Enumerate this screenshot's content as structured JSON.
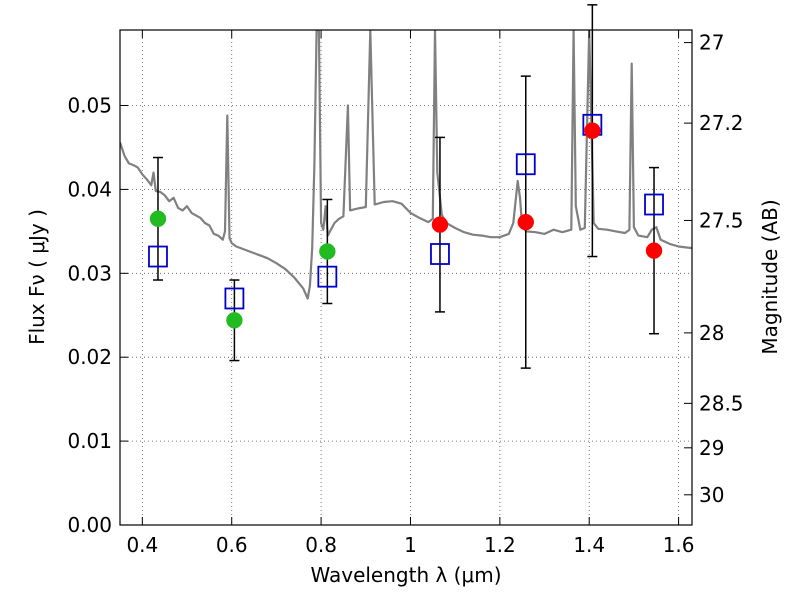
{
  "chart_data": {
    "type": "scatter",
    "xlabel": "Wavelength  λ (μm)",
    "ylabel": "Flux  Fν  ( μJy )",
    "y2label": "Magnitude (AB)",
    "xlim": [
      0.35,
      1.63
    ],
    "ylim": [
      0.0,
      0.059
    ],
    "grid": true,
    "x_ticks": [
      0.4,
      0.6,
      0.8,
      1.0,
      1.2,
      1.4,
      1.6
    ],
    "x_tick_labels": [
      "0.4",
      "0.6",
      "0.8",
      "1",
      "1.2",
      "1.4",
      "1.6"
    ],
    "y_ticks": [
      0.0,
      0.01,
      0.02,
      0.03,
      0.04,
      0.05
    ],
    "y_tick_labels": [
      "0.00",
      "0.01",
      "0.02",
      "0.03",
      "0.04",
      "0.05"
    ],
    "y2_ticks": [
      {
        "flux": 0.0575,
        "label": "27"
      },
      {
        "flux": 0.0479,
        "label": "27.2"
      },
      {
        "flux": 0.0363,
        "label": "27.5"
      },
      {
        "flux": 0.0229,
        "label": "28"
      },
      {
        "flux": 0.0145,
        "label": "28.5"
      },
      {
        "flux": 0.0092,
        "label": "29"
      },
      {
        "flux": 0.0036,
        "label": "30"
      }
    ],
    "model_spectrum": {
      "color": "#808080",
      "points": [
        [
          0.35,
          0.0456
        ],
        [
          0.36,
          0.044
        ],
        [
          0.37,
          0.0431
        ],
        [
          0.38,
          0.0429
        ],
        [
          0.39,
          0.0426
        ],
        [
          0.4,
          0.0418
        ],
        [
          0.41,
          0.0412
        ],
        [
          0.42,
          0.0405
        ],
        [
          0.425,
          0.042
        ],
        [
          0.43,
          0.0398
        ],
        [
          0.44,
          0.0397
        ],
        [
          0.45,
          0.0393
        ],
        [
          0.46,
          0.0386
        ],
        [
          0.47,
          0.039
        ],
        [
          0.48,
          0.0378
        ],
        [
          0.49,
          0.0375
        ],
        [
          0.5,
          0.038
        ],
        [
          0.51,
          0.0372
        ],
        [
          0.52,
          0.0369
        ],
        [
          0.53,
          0.0366
        ],
        [
          0.54,
          0.036
        ],
        [
          0.55,
          0.0357
        ],
        [
          0.56,
          0.0347
        ],
        [
          0.57,
          0.0345
        ],
        [
          0.58,
          0.034
        ],
        [
          0.585,
          0.035
        ],
        [
          0.59,
          0.0488
        ],
        [
          0.595,
          0.0342
        ],
        [
          0.6,
          0.0336
        ],
        [
          0.61,
          0.0332
        ],
        [
          0.62,
          0.033
        ],
        [
          0.64,
          0.0326
        ],
        [
          0.66,
          0.0322
        ],
        [
          0.68,
          0.0318
        ],
        [
          0.7,
          0.0312
        ],
        [
          0.72,
          0.0305
        ],
        [
          0.74,
          0.0295
        ],
        [
          0.76,
          0.0282
        ],
        [
          0.77,
          0.027
        ],
        [
          0.775,
          0.0285
        ],
        [
          0.78,
          0.033
        ],
        [
          0.785,
          0.043
        ],
        [
          0.79,
          0.059
        ],
        [
          0.795,
          0.059
        ],
        [
          0.8,
          0.036
        ],
        [
          0.805,
          0.0352
        ],
        [
          0.81,
          0.038
        ],
        [
          0.815,
          0.0345
        ],
        [
          0.82,
          0.035
        ],
        [
          0.83,
          0.036
        ],
        [
          0.84,
          0.0365
        ],
        [
          0.85,
          0.0368
        ],
        [
          0.86,
          0.05
        ],
        [
          0.865,
          0.0375
        ],
        [
          0.88,
          0.0377
        ],
        [
          0.9,
          0.0379
        ],
        [
          0.91,
          0.059
        ],
        [
          0.92,
          0.0382
        ],
        [
          0.94,
          0.0385
        ],
        [
          0.96,
          0.0386
        ],
        [
          0.98,
          0.0383
        ],
        [
          1.0,
          0.0372
        ],
        [
          1.02,
          0.0366
        ],
        [
          1.04,
          0.0361
        ],
        [
          1.05,
          0.0365
        ],
        [
          1.055,
          0.059
        ],
        [
          1.06,
          0.042
        ],
        [
          1.07,
          0.037
        ],
        [
          1.08,
          0.036
        ],
        [
          1.1,
          0.0354
        ],
        [
          1.12,
          0.0349
        ],
        [
          1.14,
          0.0346
        ],
        [
          1.16,
          0.0345
        ],
        [
          1.18,
          0.0343
        ],
        [
          1.2,
          0.0343
        ],
        [
          1.22,
          0.0347
        ],
        [
          1.23,
          0.036
        ],
        [
          1.24,
          0.041
        ],
        [
          1.245,
          0.039
        ],
        [
          1.25,
          0.0355
        ],
        [
          1.26,
          0.035
        ],
        [
          1.28,
          0.0349
        ],
        [
          1.3,
          0.0347
        ],
        [
          1.32,
          0.0352
        ],
        [
          1.34,
          0.0349
        ],
        [
          1.36,
          0.0352
        ],
        [
          1.365,
          0.059
        ],
        [
          1.37,
          0.038
        ],
        [
          1.38,
          0.0352
        ],
        [
          1.39,
          0.0354
        ],
        [
          1.4,
          0.059
        ],
        [
          1.41,
          0.036
        ],
        [
          1.42,
          0.0353
        ],
        [
          1.44,
          0.0352
        ],
        [
          1.46,
          0.035
        ],
        [
          1.48,
          0.0348
        ],
        [
          1.49,
          0.0352
        ],
        [
          1.495,
          0.055
        ],
        [
          1.5,
          0.0355
        ],
        [
          1.51,
          0.0345
        ],
        [
          1.53,
          0.0343
        ],
        [
          1.54,
          0.0352
        ],
        [
          1.55,
          0.0355
        ],
        [
          1.56,
          0.034
        ],
        [
          1.58,
          0.0335
        ],
        [
          1.6,
          0.0332
        ],
        [
          1.63,
          0.033
        ]
      ]
    },
    "series": [
      {
        "marker": "circle",
        "color": "#22bb22",
        "points": [
          {
            "x": 0.435,
            "y": 0.0365,
            "err": 0.0073
          },
          {
            "x": 0.606,
            "y": 0.0244,
            "err": 0.0048
          },
          {
            "x": 0.814,
            "y": 0.0326,
            "err": 0.0062
          }
        ]
      },
      {
        "marker": "circle",
        "color": "#ff0000",
        "points": [
          {
            "x": 1.066,
            "y": 0.0358,
            "err": 0.0104
          },
          {
            "x": 1.258,
            "y": 0.0361,
            "err": 0.0174
          },
          {
            "x": 1.407,
            "y": 0.047,
            "err": 0.015
          },
          {
            "x": 1.545,
            "y": 0.0327,
            "err": 0.0099
          }
        ]
      },
      {
        "marker": "open-square",
        "color": "#0000cc",
        "points": [
          {
            "x": 0.435,
            "y": 0.032
          },
          {
            "x": 0.606,
            "y": 0.027
          },
          {
            "x": 0.814,
            "y": 0.0296
          },
          {
            "x": 1.066,
            "y": 0.0323
          },
          {
            "x": 1.258,
            "y": 0.043
          },
          {
            "x": 1.407,
            "y": 0.0477
          },
          {
            "x": 1.545,
            "y": 0.0382
          }
        ]
      }
    ]
  }
}
